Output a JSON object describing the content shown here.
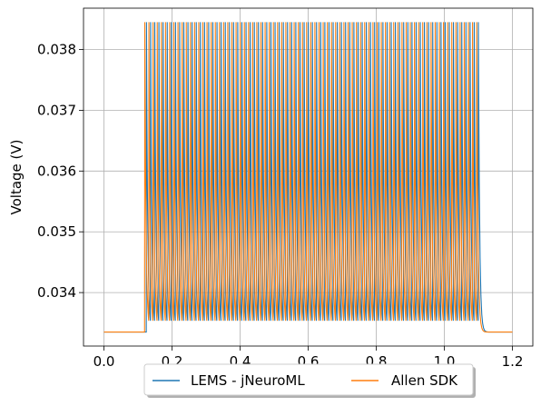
{
  "chart_data": {
    "type": "line",
    "title": "",
    "xlabel": "",
    "ylabel": "Voltage (V)",
    "xlim": [
      -0.06,
      1.26
    ],
    "ylim": [
      0.03312,
      0.03868
    ],
    "xticks": [
      0.0,
      0.2,
      0.4,
      0.6,
      0.8,
      1.0,
      1.2
    ],
    "xtick_labels": [
      "0.0",
      "0.2",
      "0.4",
      "0.6",
      "0.8",
      "1.0",
      "1.2"
    ],
    "yticks": [
      0.034,
      0.035,
      0.036,
      0.037,
      0.038
    ],
    "ytick_labels": [
      "0.034",
      "0.035",
      "0.036",
      "0.037",
      "0.038"
    ],
    "grid": true,
    "legend": {
      "placement": "bottom-center, below plot",
      "ncol": 2
    },
    "series": [
      {
        "name": "LEMS - jNeuroML",
        "color": "#1f77b4",
        "baseline": 0.03335,
        "peak": 0.03845,
        "spike_start": 0.125,
        "spike_end": 1.1,
        "spike_count": 81,
        "x_start": 0.0,
        "x_end": 1.2
      },
      {
        "name": "Allen SDK",
        "color": "#ff7f0e",
        "baseline": 0.03335,
        "peak": 0.03845,
        "spike_start": 0.12,
        "spike_end": 1.095,
        "spike_count": 81,
        "x_start": 0.0,
        "x_end": 1.2
      }
    ]
  }
}
